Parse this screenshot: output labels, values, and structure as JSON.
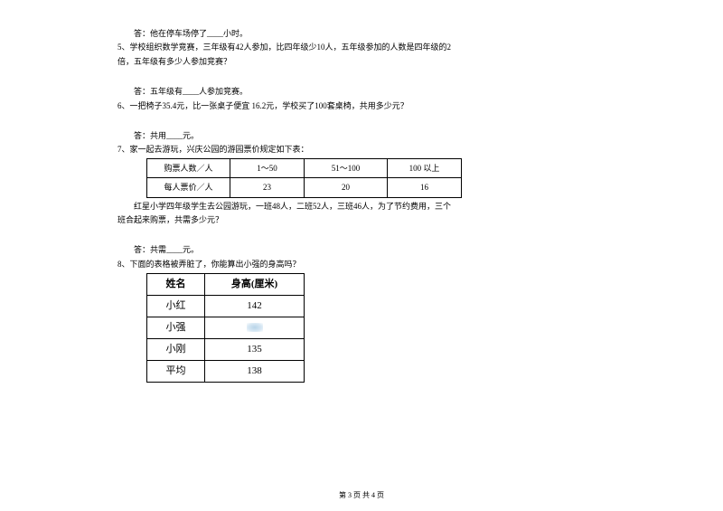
{
  "q4_answer": "答：他在停车场停了____小时。",
  "q5_stem": "5、学校组织数学竞赛，三年级有42人参加，比四年级少10人，五年级参加的人数是四年级的2",
  "q5_stem2": "倍，五年级有多少人参加竞赛？",
  "q5_answer": "答：五年级有____人参加竞赛。",
  "q6_stem": "6、一把椅子35.4元，比一张桌子便宜 16.2元，学校买了100套桌椅，共用多少元？",
  "q6_answer": "答：共用____元。",
  "q7_stem": "7、家一起去游玩，兴庆公园的游园票价规定如下表：",
  "q7_table": {
    "headers": [
      "购票人数／人",
      "1～50",
      "51～100",
      "100 以上"
    ],
    "row": [
      "每人票价／人",
      "23",
      "20",
      "16"
    ],
    "col_widths": [
      "92px",
      "82px",
      "92px",
      "82px"
    ]
  },
  "q7_body1": "红星小学四年级学生去公园游玩，一班48人，二班52人，三班46人，为了节约费用，三个",
  "q7_body2": "班合起来购票，共需多少元？",
  "q7_answer": "答：共需____元。",
  "q8_stem": "8、下面的表格被弄脏了，你能算出小强的身高吗？",
  "q8_table": {
    "header": [
      "姓名",
      "身高(厘米)"
    ],
    "rows": [
      [
        "小红",
        "142"
      ],
      [
        "小强",
        "__BLUR__"
      ],
      [
        "小刚",
        "135"
      ],
      [
        "平均",
        "138"
      ]
    ]
  },
  "footer": "第 3 页 共 4 页"
}
